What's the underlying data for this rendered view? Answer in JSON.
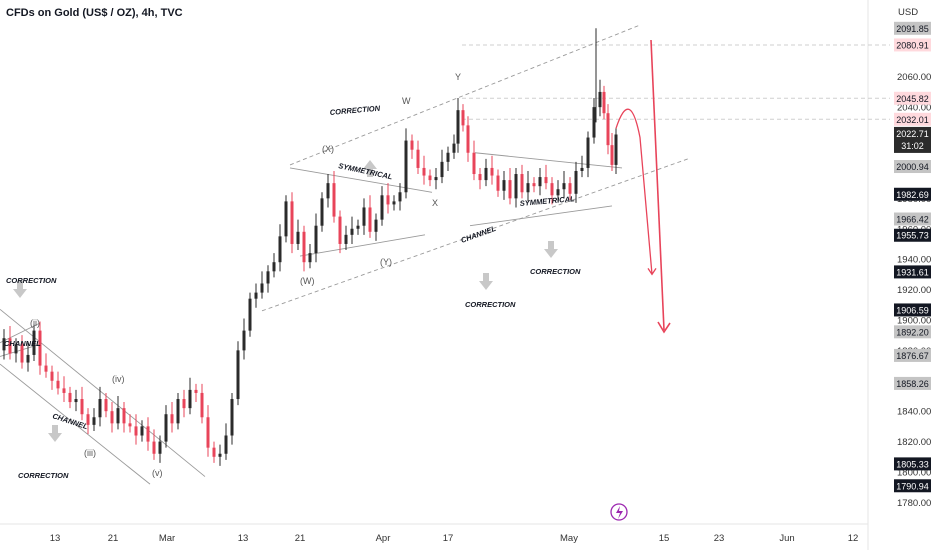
{
  "header": {
    "title": "CFDs on Gold (US$ / OZ), 4h, TVC"
  },
  "colors": {
    "up": "#2b2b2b",
    "down": "#e8445a",
    "annotation_red": "#e8445a",
    "guide": "#9a9a9a",
    "arrow_gray": "#c8c8c8"
  },
  "chart_data": {
    "type": "candlestick",
    "title": "CFDs on Gold (US$ / OZ), 4h, TVC",
    "currency": "USD",
    "ylim": [
      1775,
      2096
    ],
    "x_tick_labels": [
      "13",
      "21",
      "Mar",
      "13",
      "21",
      "Apr",
      "17",
      "May",
      "15",
      "23",
      "Jun",
      "12"
    ],
    "y_tick_labels": [
      "1780.00",
      "1800.00",
      "1820.00",
      "1840.00",
      "1860.00",
      "1880.00",
      "1900.00",
      "1920.00",
      "1940.00",
      "1960.00",
      "1980.00",
      "2000.00",
      "2020.00",
      "2040.00",
      "2060.00",
      "2080.00"
    ],
    "price_labels": [
      {
        "value": "2091.85",
        "style": "gray"
      },
      {
        "value": "2080.91",
        "style": "red"
      },
      {
        "value": "2045.82",
        "style": "red"
      },
      {
        "value": "2032.01",
        "style": "red"
      },
      {
        "value": "2022.71",
        "style": "current",
        "sub": "31:02"
      },
      {
        "value": "2000.94",
        "style": "gray"
      },
      {
        "value": "1982.69",
        "style": "dark"
      },
      {
        "value": "1966.42",
        "style": "gray"
      },
      {
        "value": "1955.73",
        "style": "dark"
      },
      {
        "value": "1931.61",
        "style": "dark"
      },
      {
        "value": "1906.59",
        "style": "dark"
      },
      {
        "value": "1892.20",
        "style": "gray"
      },
      {
        "value": "1876.67",
        "style": "gray"
      },
      {
        "value": "1858.26",
        "style": "gray"
      },
      {
        "value": "1805.33",
        "style": "dark"
      },
      {
        "value": "1790.94",
        "style": "dark"
      }
    ],
    "price_path": [
      [
        0,
        1880
      ],
      [
        6,
        1888
      ],
      [
        12,
        1878
      ],
      [
        18,
        1884
      ],
      [
        24,
        1872
      ],
      [
        30,
        1877
      ],
      [
        36,
        1893
      ],
      [
        42,
        1870
      ],
      [
        48,
        1866
      ],
      [
        54,
        1860
      ],
      [
        60,
        1855
      ],
      [
        66,
        1852
      ],
      [
        72,
        1846
      ],
      [
        78,
        1848
      ],
      [
        84,
        1838
      ],
      [
        90,
        1831
      ],
      [
        96,
        1836
      ],
      [
        102,
        1848
      ],
      [
        108,
        1840
      ],
      [
        114,
        1832
      ],
      [
        120,
        1842
      ],
      [
        126,
        1832
      ],
      [
        132,
        1830
      ],
      [
        138,
        1824
      ],
      [
        144,
        1830
      ],
      [
        150,
        1820
      ],
      [
        156,
        1812
      ],
      [
        162,
        1820
      ],
      [
        168,
        1838
      ],
      [
        174,
        1832
      ],
      [
        180,
        1848
      ],
      [
        186,
        1842
      ],
      [
        192,
        1854
      ],
      [
        198,
        1852
      ],
      [
        204,
        1836
      ],
      [
        210,
        1816
      ],
      [
        216,
        1810
      ],
      [
        222,
        1812
      ],
      [
        228,
        1824
      ],
      [
        234,
        1848
      ],
      [
        240,
        1880
      ],
      [
        246,
        1893
      ],
      [
        252,
        1914
      ],
      [
        258,
        1918
      ],
      [
        264,
        1924
      ],
      [
        270,
        1932
      ],
      [
        276,
        1938
      ],
      [
        282,
        1955
      ],
      [
        288,
        1978
      ],
      [
        294,
        1950
      ],
      [
        300,
        1958
      ],
      [
        306,
        1938
      ],
      [
        312,
        1944
      ],
      [
        318,
        1962
      ],
      [
        324,
        1980
      ],
      [
        330,
        1990
      ],
      [
        336,
        1968
      ],
      [
        342,
        1950
      ],
      [
        348,
        1956
      ],
      [
        354,
        1960
      ],
      [
        360,
        1962
      ],
      [
        366,
        1974
      ],
      [
        372,
        1958
      ],
      [
        378,
        1966
      ],
      [
        384,
        1982
      ],
      [
        390,
        1976
      ],
      [
        396,
        1978
      ],
      [
        402,
        1984
      ],
      [
        408,
        2018
      ],
      [
        414,
        2012
      ],
      [
        420,
        2000
      ],
      [
        426,
        1995
      ],
      [
        432,
        1992
      ],
      [
        438,
        1994
      ],
      [
        444,
        2004
      ],
      [
        450,
        2010
      ],
      [
        456,
        2016
      ],
      [
        460,
        2038
      ],
      [
        465,
        2028
      ],
      [
        470,
        2010
      ],
      [
        476,
        1996
      ],
      [
        482,
        1992
      ],
      [
        488,
        2000
      ],
      [
        494,
        1995
      ],
      [
        500,
        1985
      ],
      [
        506,
        1992
      ],
      [
        512,
        1980
      ],
      [
        518,
        1996
      ],
      [
        524,
        1984
      ],
      [
        530,
        1990
      ],
      [
        536,
        1988
      ],
      [
        542,
        1994
      ],
      [
        548,
        1990
      ],
      [
        554,
        1982
      ],
      [
        560,
        1986
      ],
      [
        566,
        1990
      ],
      [
        572,
        1983
      ],
      [
        578,
        1998
      ],
      [
        584,
        2000
      ],
      [
        590,
        2020
      ],
      [
        596,
        2040
      ],
      [
        602,
        2050
      ],
      [
        606,
        2036
      ],
      [
        610,
        2015
      ],
      [
        614,
        2002
      ],
      [
        618,
        2022
      ]
    ],
    "projection": [
      [
        616,
        2026
      ],
      [
        630,
        2040
      ],
      [
        640,
        2020
      ],
      [
        652,
        1930
      ]
    ],
    "annotations": [
      {
        "text": "CORRECTION",
        "type": "label"
      },
      {
        "text": "CORRECTION",
        "type": "label"
      },
      {
        "text": "CORRECTION",
        "type": "label"
      },
      {
        "text": "CORRECTION",
        "type": "label"
      },
      {
        "text": "CORRECTION",
        "type": "label"
      },
      {
        "text": "CORRECTION",
        "type": "label"
      },
      {
        "text": "CHANNEL",
        "type": "label"
      },
      {
        "text": "CHANNEL",
        "type": "label"
      },
      {
        "text": "CHANNEL",
        "type": "label"
      },
      {
        "text": "SYMMETRICAL",
        "type": "label"
      },
      {
        "text": "SYMMETRICAL",
        "type": "label"
      }
    ],
    "wave_labels": [
      "(ii)",
      "(iv)",
      "(iii)",
      "(v)",
      "(W)",
      "(X)",
      "(Y)",
      "W",
      "X",
      "Y"
    ]
  }
}
